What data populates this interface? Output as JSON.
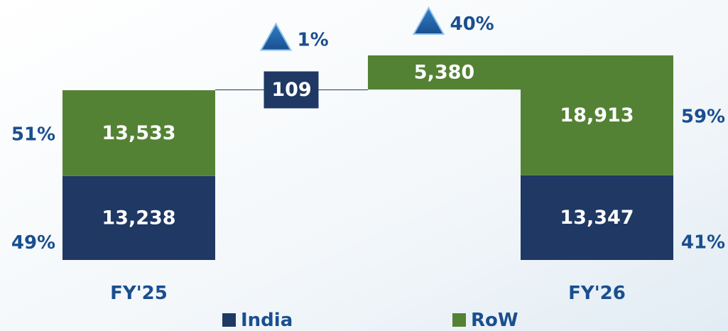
{
  "chart_data": {
    "type": "waterfall",
    "categories": [
      "FY'25",
      null,
      null,
      "FY'26"
    ],
    "series": [
      {
        "name": "India",
        "color": "#1f3864",
        "values": [
          13238,
          109,
          null,
          13347
        ],
        "value_labels": [
          "13,238",
          "109",
          null,
          "13,347"
        ],
        "shares": [
          49,
          null,
          null,
          41
        ],
        "share_labels": [
          "49%",
          null,
          null,
          "41%"
        ],
        "change": {
          "value": 1,
          "label": "1%"
        }
      },
      {
        "name": "RoW",
        "color": "#548235",
        "values": [
          13533,
          null,
          5380,
          18913
        ],
        "value_labels": [
          "13,533",
          null,
          "5,380",
          "18,913"
        ],
        "shares": [
          51,
          null,
          null,
          59
        ],
        "share_labels": [
          "51%",
          null,
          null,
          "59%"
        ],
        "change": {
          "value": 40,
          "label": "40%"
        }
      }
    ]
  }
}
